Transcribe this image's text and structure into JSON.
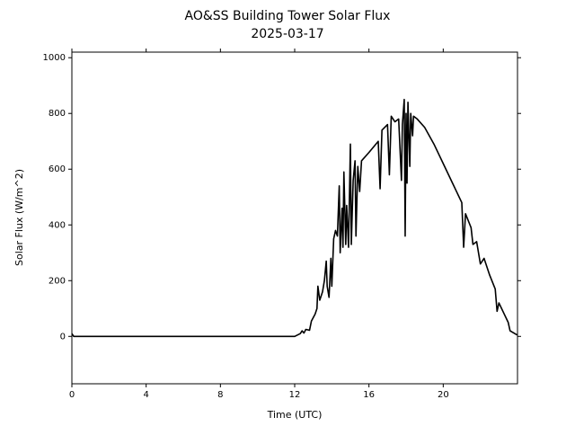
{
  "chart_data": {
    "type": "line",
    "title": "AO&SS Building Tower Solar Flux",
    "subtitle": "2025-03-17",
    "x_label": "Time (UTC)",
    "y_label": "Solar Flux (W/m^2)",
    "color": "#000000",
    "x": [
      0,
      0.1,
      12,
      12.3,
      12.4,
      12.5,
      12.6,
      12.8,
      12.9,
      13.1,
      13.2,
      13.25,
      13.35,
      13.5,
      13.6,
      13.7,
      13.75,
      13.85,
      13.95,
      14.0,
      14.1,
      14.2,
      14.3,
      14.4,
      14.45,
      14.55,
      14.6,
      14.65,
      14.75,
      14.8,
      14.9,
      15.0,
      15.05,
      15.15,
      15.25,
      15.3,
      15.4,
      15.5,
      15.6,
      16.0,
      16.5,
      16.6,
      16.7,
      17.0,
      17.1,
      17.2,
      17.4,
      17.6,
      17.75,
      17.8,
      17.9,
      17.95,
      18.0,
      18.05,
      18.1,
      18.2,
      18.25,
      18.35,
      18.4,
      18.6,
      19.0,
      19.5,
      20.0,
      20.5,
      21.0,
      21.1,
      21.2,
      21.5,
      21.6,
      21.8,
      22.0,
      22.2,
      22.5,
      22.8,
      22.9,
      23.0,
      23.5,
      23.6,
      23.98
    ],
    "values": [
      10,
      0,
      0,
      10,
      20,
      12,
      25,
      22,
      55,
      80,
      100,
      180,
      130,
      160,
      200,
      270,
      180,
      140,
      280,
      180,
      350,
      380,
      360,
      540,
      300,
      460,
      320,
      590,
      330,
      470,
      320,
      690,
      330,
      560,
      630,
      360,
      610,
      520,
      630,
      660,
      700,
      530,
      740,
      760,
      580,
      790,
      770,
      780,
      560,
      760,
      850,
      360,
      800,
      550,
      840,
      610,
      800,
      720,
      790,
      780,
      750,
      690,
      620,
      550,
      480,
      320,
      440,
      390,
      330,
      340,
      260,
      280,
      220,
      170,
      90,
      120,
      50,
      20,
      5
    ],
    "xlim": [
      0,
      24
    ],
    "xticks": [
      0,
      4,
      8,
      12,
      16,
      20
    ],
    "ylim": [
      -170,
      1020
    ],
    "yticks": [
      0,
      200,
      400,
      600,
      800,
      1000
    ]
  }
}
